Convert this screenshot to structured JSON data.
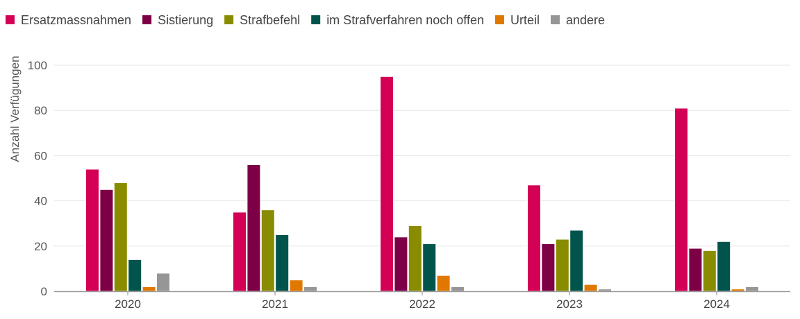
{
  "chart_data": {
    "type": "bar",
    "title": "",
    "xlabel": "",
    "ylabel": "Anzahl Verfügungen",
    "ylim": [
      0,
      100
    ],
    "yticks": [
      0,
      20,
      40,
      60,
      80,
      100
    ],
    "grid": true,
    "legend_position": "top-left",
    "categories": [
      "2020",
      "2021",
      "2022",
      "2023",
      "2024"
    ],
    "series": [
      {
        "name": "Ersatzmassnahmen",
        "color": "#d40055",
        "values": [
          54,
          35,
          95,
          47,
          81
        ]
      },
      {
        "name": "Sistierung",
        "color": "#7d0046",
        "values": [
          45,
          56,
          24,
          21,
          19
        ]
      },
      {
        "name": "Strafbefehl",
        "color": "#8a8c00",
        "values": [
          48,
          36,
          29,
          23,
          18
        ]
      },
      {
        "name": "im Strafverfahren noch offen",
        "color": "#00544c",
        "values": [
          14,
          25,
          21,
          27,
          22
        ]
      },
      {
        "name": "Urteil",
        "color": "#e07800",
        "values": [
          2,
          5,
          7,
          3,
          1
        ]
      },
      {
        "name": "andere",
        "color": "#969696",
        "values": [
          8,
          2,
          2,
          1,
          2
        ]
      }
    ]
  }
}
